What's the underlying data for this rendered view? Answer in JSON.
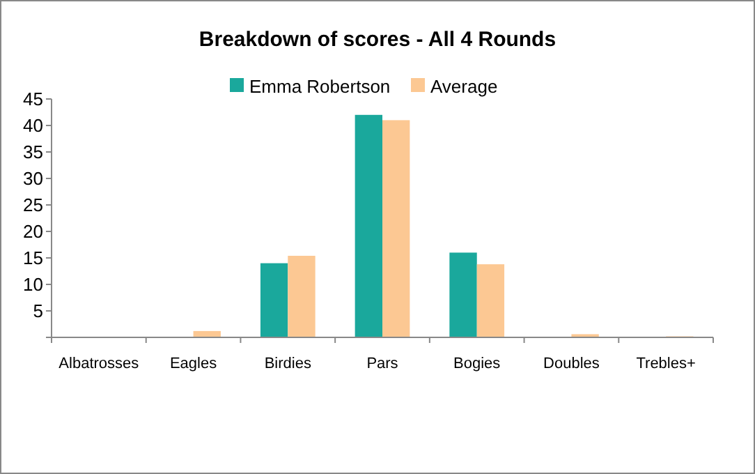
{
  "chart_data": {
    "type": "bar",
    "title": "Breakdown of scores - All 4 Rounds",
    "categories": [
      "Albatrosses",
      "Eagles",
      "Birdies",
      "Pars",
      "Bogies",
      "Doubles",
      "Trebles+"
    ],
    "series": [
      {
        "name": "Emma Robertson",
        "color": "#1aa89c",
        "values": [
          0,
          0,
          14,
          42,
          16,
          0,
          0
        ]
      },
      {
        "name": "Average",
        "color": "#fcc893",
        "values": [
          0,
          1.2,
          15.4,
          41,
          13.8,
          0.6,
          0.2
        ]
      }
    ],
    "ylim": [
      0,
      45
    ],
    "yticks": [
      {
        "value": 0,
        "label": null
      },
      5,
      10,
      15,
      20,
      25,
      30,
      35,
      40,
      45
    ],
    "grid": false,
    "legend": "top"
  }
}
